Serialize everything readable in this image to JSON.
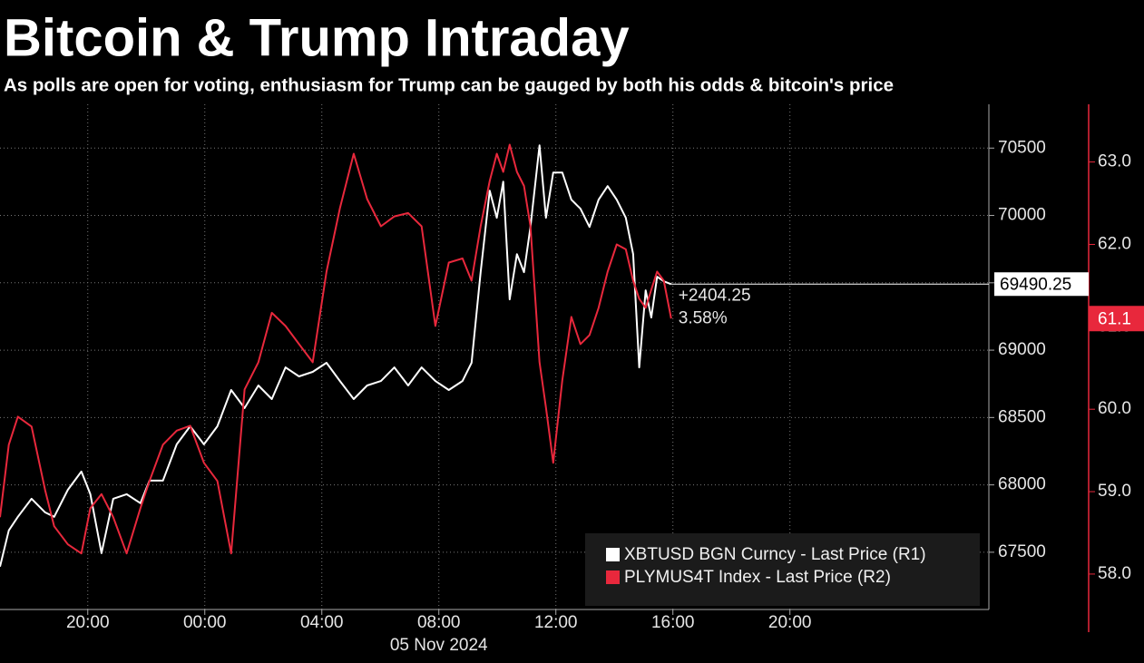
{
  "chart_data": {
    "type": "line",
    "title": "Bitcoin & Trump Intraday",
    "subtitle": "As polls are open for voting, enthusiasm for Trump can be gauged by both his odds & bitcoin's price",
    "xlabel": "05 Nov 2024",
    "x": [
      -7.0,
      -6.7,
      -6.39,
      -5.92,
      -5.46,
      -5.15,
      -4.68,
      -4.22,
      -3.91,
      -3.53,
      -3.13,
      -2.67,
      -2.2,
      -1.89,
      -1.43,
      -0.96,
      -0.5,
      -0.03,
      0.43,
      0.9,
      1.36,
      1.83,
      2.29,
      2.76,
      3.22,
      3.69,
      4.16,
      4.62,
      5.09,
      5.55,
      6.02,
      6.48,
      6.95,
      7.41,
      7.88,
      8.34,
      8.81,
      9.12,
      9.43,
      9.74,
      9.98,
      10.2,
      10.42,
      10.67,
      10.91,
      11.13,
      11.44,
      11.66,
      11.91,
      12.22,
      12.53,
      12.84,
      13.15,
      13.46,
      13.77,
      14.08,
      14.39,
      14.64,
      14.85,
      15.07,
      15.26,
      15.46,
      15.69,
      15.94
    ],
    "series": [
      {
        "name": "XBTUSD BGN Curncy - Last Price (R1)",
        "color": "#ffffff",
        "axis": "y",
        "values": [
          67393,
          67662,
          67763,
          67897,
          67796,
          67763,
          67964,
          68099,
          67931,
          67493,
          67897,
          67931,
          67864,
          68032,
          68032,
          68301,
          68435,
          68301,
          68435,
          68704,
          68570,
          68738,
          68637,
          68872,
          68805,
          68839,
          68906,
          68771,
          68637,
          68738,
          68771,
          68872,
          68738,
          68872,
          68771,
          68704,
          68771,
          68906,
          69579,
          70184,
          69983,
          70251,
          69377,
          69713,
          69579,
          69915,
          70520,
          69983,
          70319,
          70319,
          70117,
          70050,
          69915,
          70117,
          70218,
          70117,
          69983,
          69713,
          68872,
          69444,
          69242,
          69545,
          69511,
          69490.25
        ]
      },
      {
        "name": "PLYMUS4T Index - Last Price (R2)",
        "color": "#e8283c",
        "axis": "y2",
        "values": [
          58.69,
          59.57,
          59.91,
          59.79,
          59.02,
          58.58,
          58.36,
          58.25,
          58.8,
          58.97,
          58.69,
          58.25,
          58.8,
          59.13,
          59.57,
          59.74,
          59.8,
          59.35,
          59.13,
          58.25,
          60.24,
          60.57,
          61.17,
          61.01,
          60.79,
          60.57,
          61.67,
          62.44,
          63.1,
          62.55,
          62.22,
          62.34,
          62.38,
          62.22,
          61.01,
          61.78,
          61.83,
          61.56,
          62.22,
          62.77,
          63.1,
          62.88,
          63.21,
          62.88,
          62.71,
          62.22,
          60.57,
          60.02,
          59.35,
          60.35,
          61.12,
          60.79,
          60.9,
          61.23,
          61.67,
          62.0,
          61.94,
          61.56,
          61.34,
          61.23,
          61.45,
          61.67,
          61.56,
          61.1
        ]
      }
    ],
    "xlim": [
      -7.0,
      26.8
    ],
    "xticks": [
      {
        "value": -4,
        "label": "20:00"
      },
      {
        "value": 0,
        "label": "00:00"
      },
      {
        "value": 4,
        "label": "04:00"
      },
      {
        "value": 8,
        "label": "08:00"
      },
      {
        "value": 12,
        "label": "12:00"
      },
      {
        "value": 16,
        "label": "16:00"
      },
      {
        "value": 20,
        "label": "20:00"
      }
    ],
    "ylim": [
      67075,
      70825
    ],
    "yticks": [
      67500,
      68000,
      68500,
      69000,
      69500,
      70000,
      70500
    ],
    "y2lim": [
      57.57,
      63.7
    ],
    "y2ticks": [
      {
        "value": 58,
        "label": "58.0"
      },
      {
        "value": 59,
        "label": "59.0"
      },
      {
        "value": 60,
        "label": "60.0"
      },
      {
        "value": 61,
        "label": "61.0"
      },
      {
        "value": 62,
        "label": "62.0"
      },
      {
        "value": 63,
        "label": "63.0"
      }
    ],
    "annotations": [
      "+2404.25",
      "3.58%"
    ],
    "grid": true,
    "legend": "lower right"
  }
}
